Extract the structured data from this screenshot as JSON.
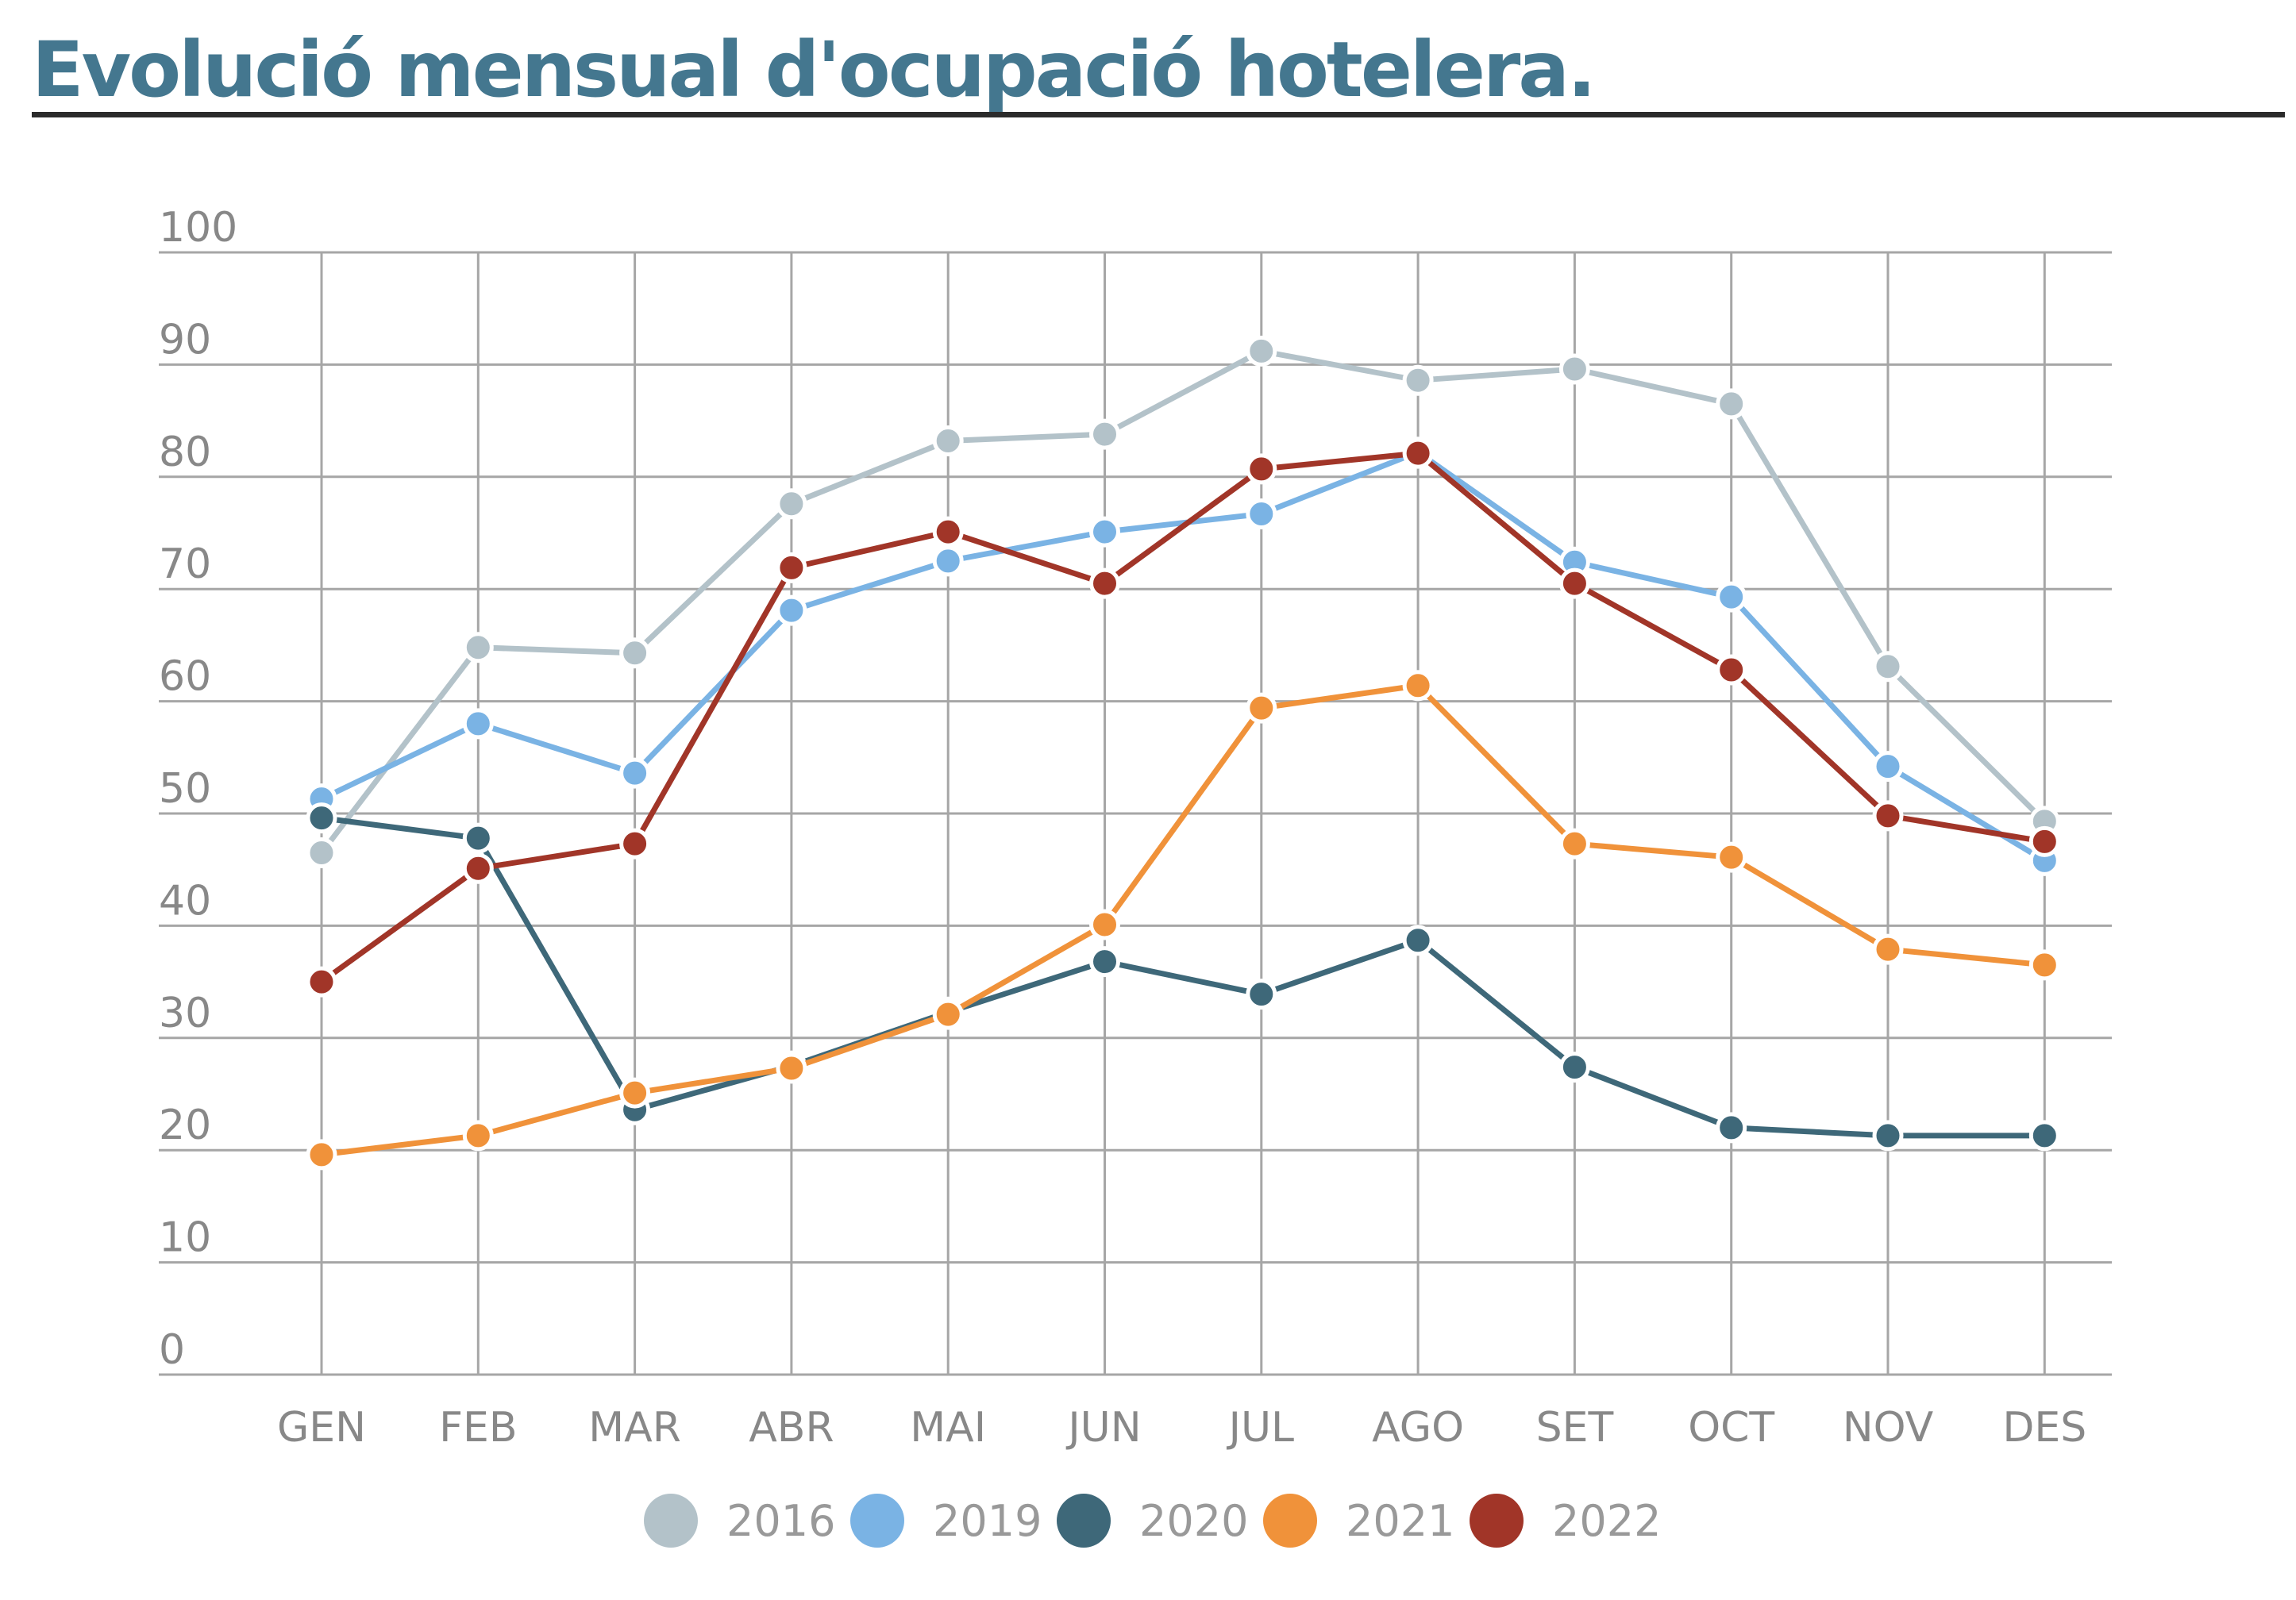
{
  "title": "Evolució mensual d'ocupació hotelera.",
  "chart_data": {
    "type": "line",
    "categories": [
      "GEN",
      "FEB",
      "MAR",
      "ABR",
      "MAI",
      "JUN",
      "JUL",
      "AGO",
      "SET",
      "OCT",
      "NOV",
      "DES"
    ],
    "ylim": [
      0,
      100
    ],
    "yticks": [
      0,
      10,
      20,
      30,
      40,
      50,
      60,
      70,
      80,
      90,
      100
    ],
    "grid": true,
    "legend_position": "bottom",
    "series": [
      {
        "name": "2016",
        "color": "#b3c2c9",
        "values": [
          46.5,
          64.8,
          64.3,
          77.6,
          83.2,
          83.8,
          91.2,
          88.6,
          89.6,
          86.5,
          63.1,
          49.3
        ]
      },
      {
        "name": "2019",
        "color": "#7ab3e4",
        "values": [
          51.3,
          58.0,
          53.6,
          68.1,
          72.5,
          75.1,
          76.7,
          82.2,
          72.4,
          69.3,
          54.2,
          45.8
        ]
      },
      {
        "name": "2020",
        "color": "#3e6879",
        "values": [
          49.6,
          47.8,
          23.6,
          27.5,
          32.3,
          36.8,
          33.9,
          38.7,
          27.4,
          22.0,
          21.3,
          21.3
        ]
      },
      {
        "name": "2021",
        "color": "#f0923a",
        "values": [
          19.6,
          21.3,
          25.1,
          27.3,
          32.1,
          40.1,
          59.4,
          61.4,
          47.3,
          46.1,
          37.9,
          36.5
        ]
      },
      {
        "name": "2022",
        "color": "#a13528",
        "values": [
          35.0,
          45.1,
          47.3,
          71.9,
          75.1,
          70.5,
          80.7,
          82.1,
          70.5,
          62.8,
          49.8,
          47.5
        ]
      }
    ]
  }
}
